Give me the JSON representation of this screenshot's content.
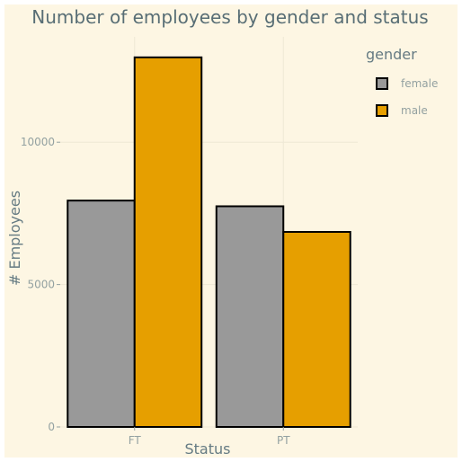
{
  "chart_data": {
    "type": "bar",
    "title": "Number of employees by gender and status",
    "xlabel": "Status",
    "ylabel": "# Employees",
    "categories": [
      "FT",
      "PT"
    ],
    "series": [
      {
        "name": "female",
        "values": [
          7950,
          7750
        ],
        "color": "#999999"
      },
      {
        "name": "male",
        "values": [
          12980,
          6850
        ],
        "color": "#E69F00"
      }
    ],
    "ylim": [
      0,
      13700
    ],
    "yticks": [
      0,
      5000,
      10000
    ],
    "ytick_labels": [
      "0",
      "5000",
      "10000"
    ],
    "grid": true,
    "legend_title": "gender",
    "legend_position": "right"
  }
}
